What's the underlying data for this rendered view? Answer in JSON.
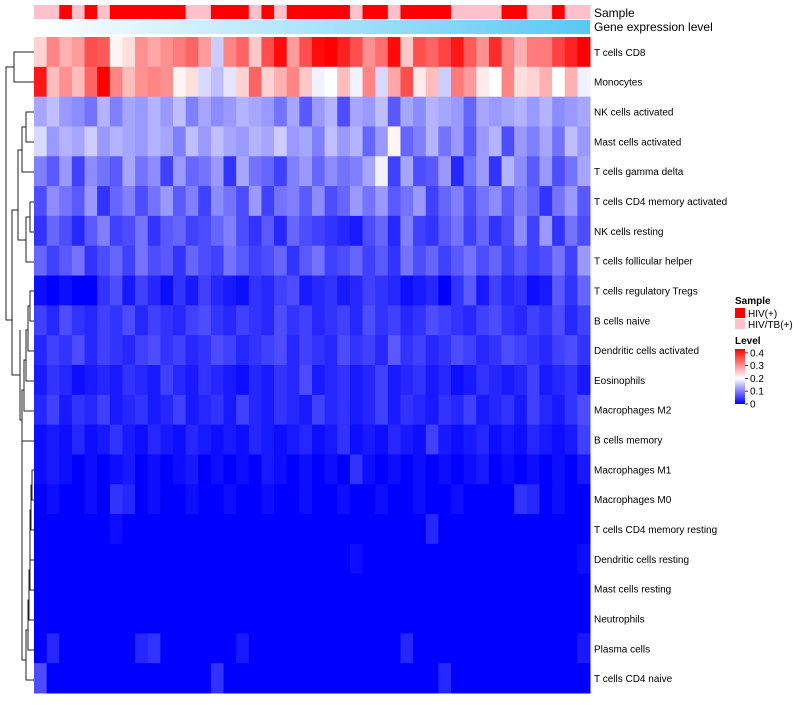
{
  "chart_data": {
    "type": "heatmap",
    "annotation_labels": {
      "sample": "Sample",
      "gene_expression": "Gene expression level"
    },
    "row_labels": [
      "T cells CD8",
      "Monocytes",
      "NK cells activated",
      "Mast cells activated",
      "T cells gamma delta",
      "T cells CD4 memory activated",
      "NK cells resting",
      "T cells follicular helper",
      "T cells regulatory  Tregs",
      "B cells naive",
      "Dendritic cells activated",
      "Eosinophils",
      "Macrophages M2",
      "B cells memory",
      "Macrophages M1",
      "Macrophages M0",
      "T cells CD4 memory resting",
      "Dendritic cells resting",
      "Mast cells resting",
      "Neutrophils",
      "Plasma cells",
      "T cells CD4 naive"
    ],
    "sample_groups": [
      0,
      0,
      1,
      0,
      1,
      0,
      1,
      1,
      1,
      1,
      1,
      1,
      0,
      0,
      1,
      1,
      1,
      0,
      1,
      0,
      1,
      1,
      1,
      1,
      1,
      0,
      1,
      1,
      0,
      1,
      1,
      1,
      1,
      0,
      0,
      0,
      0,
      1,
      1,
      0,
      0,
      1,
      0,
      0
    ],
    "gene_expression_gradient": [
      "#ffffff",
      "#5ac8f5"
    ],
    "values": [
      [
        0.24,
        0.31,
        0.27,
        0.29,
        0.36,
        0.35,
        0.21,
        0.23,
        0.3,
        0.28,
        0.3,
        0.32,
        0.34,
        0.29,
        0.16,
        0.31,
        0.34,
        0.25,
        0.36,
        0.42,
        0.29,
        0.36,
        0.42,
        0.43,
        0.4,
        0.36,
        0.3,
        0.33,
        0.42,
        0.25,
        0.36,
        0.34,
        0.37,
        0.41,
        0.35,
        0.3,
        0.39,
        0.31,
        0.27,
        0.32,
        0.32,
        0.37,
        0.4,
        0.43
      ],
      [
        0.41,
        0.26,
        0.3,
        0.26,
        0.34,
        0.43,
        0.31,
        0.26,
        0.3,
        0.31,
        0.3,
        0.21,
        0.23,
        0.17,
        0.15,
        0.18,
        0.24,
        0.34,
        0.24,
        0.27,
        0.31,
        0.25,
        0.19,
        0.2,
        0.26,
        0.19,
        0.31,
        0.17,
        0.28,
        0.36,
        0.22,
        0.26,
        0.16,
        0.32,
        0.29,
        0.22,
        0.2,
        0.31,
        0.23,
        0.24,
        0.27,
        0.2,
        0.27,
        0.19
      ],
      [
        0.13,
        0.15,
        0.12,
        0.11,
        0.09,
        0.14,
        0.1,
        0.13,
        0.12,
        0.14,
        0.12,
        0.15,
        0.1,
        0.13,
        0.11,
        0.12,
        0.14,
        0.13,
        0.12,
        0.09,
        0.13,
        0.07,
        0.12,
        0.14,
        0.06,
        0.13,
        0.12,
        0.15,
        0.07,
        0.13,
        0.11,
        0.14,
        0.13,
        0.12,
        0.08,
        0.13,
        0.12,
        0.13,
        0.14,
        0.12,
        0.14,
        0.11,
        0.12,
        0.13
      ],
      [
        0.17,
        0.12,
        0.14,
        0.13,
        0.16,
        0.12,
        0.14,
        0.13,
        0.12,
        0.14,
        0.13,
        0.1,
        0.15,
        0.12,
        0.15,
        0.13,
        0.12,
        0.14,
        0.13,
        0.16,
        0.12,
        0.13,
        0.1,
        0.15,
        0.12,
        0.14,
        0.08,
        0.12,
        0.21,
        0.08,
        0.1,
        0.14,
        0.09,
        0.12,
        0.07,
        0.12,
        0.14,
        0.06,
        0.12,
        0.1,
        0.13,
        0.09,
        0.15,
        0.12
      ],
      [
        0.1,
        0.07,
        0.12,
        0.05,
        0.11,
        0.09,
        0.07,
        0.13,
        0.09,
        0.11,
        0.05,
        0.12,
        0.08,
        0.09,
        0.12,
        0.04,
        0.13,
        0.09,
        0.08,
        0.05,
        0.1,
        0.12,
        0.08,
        0.11,
        0.09,
        0.1,
        0.13,
        0.19,
        0.05,
        0.13,
        0.06,
        0.07,
        0.12,
        0.03,
        0.09,
        0.12,
        0.04,
        0.14,
        0.11,
        0.07,
        0.12,
        0.06,
        0.09,
        0.13
      ],
      [
        0.06,
        0.11,
        0.09,
        0.07,
        0.12,
        0.04,
        0.08,
        0.1,
        0.06,
        0.09,
        0.12,
        0.07,
        0.1,
        0.05,
        0.11,
        0.09,
        0.06,
        0.12,
        0.05,
        0.09,
        0.1,
        0.07,
        0.11,
        0.06,
        0.08,
        0.12,
        0.09,
        0.12,
        0.07,
        0.09,
        0.12,
        0.05,
        0.08,
        0.1,
        0.06,
        0.09,
        0.11,
        0.07,
        0.1,
        0.08,
        0.04,
        0.09,
        0.12,
        0.07
      ],
      [
        0.04,
        0.08,
        0.06,
        0.03,
        0.07,
        0.1,
        0.05,
        0.06,
        0.09,
        0.04,
        0.07,
        0.08,
        0.05,
        0.06,
        0.08,
        0.1,
        0.06,
        0.04,
        0.07,
        0.03,
        0.08,
        0.06,
        0.05,
        0.04,
        0.03,
        0.02,
        0.06,
        0.08,
        0.03,
        0.1,
        0.05,
        0.04,
        0.07,
        0.09,
        0.05,
        0.08,
        0.04,
        0.06,
        0.11,
        0.05,
        0.12,
        0.04,
        0.09,
        0.06
      ],
      [
        0.08,
        0.05,
        0.07,
        0.09,
        0.04,
        0.06,
        0.08,
        0.05,
        0.09,
        0.06,
        0.07,
        0.04,
        0.08,
        0.06,
        0.05,
        0.09,
        0.07,
        0.05,
        0.06,
        0.08,
        0.04,
        0.07,
        0.09,
        0.05,
        0.06,
        0.08,
        0.05,
        0.07,
        0.04,
        0.09,
        0.06,
        0.08,
        0.05,
        0.07,
        0.09,
        0.06,
        0.08,
        0.05,
        0.07,
        0.05,
        0.06,
        0.09,
        0.05,
        0.12
      ],
      [
        0.01,
        0.0,
        0.01,
        0.0,
        0.0,
        0.04,
        0.06,
        0.02,
        0.05,
        0.03,
        0.01,
        0.04,
        0.02,
        0.05,
        0.03,
        0.02,
        0.01,
        0.04,
        0.03,
        0.05,
        0.06,
        0.02,
        0.03,
        0.04,
        0.02,
        0.03,
        0.05,
        0.04,
        0.03,
        0.01,
        0.02,
        0.03,
        0.0,
        0.04,
        0.07,
        0.02,
        0.05,
        0.03,
        0.04,
        0.01,
        0.02,
        0.07,
        0.04,
        0.08
      ],
      [
        0.05,
        0.03,
        0.06,
        0.04,
        0.03,
        0.05,
        0.04,
        0.06,
        0.03,
        0.05,
        0.04,
        0.03,
        0.05,
        0.06,
        0.04,
        0.03,
        0.05,
        0.04,
        0.03,
        0.06,
        0.04,
        0.05,
        0.03,
        0.04,
        0.05,
        0.03,
        0.06,
        0.04,
        0.05,
        0.03,
        0.04,
        0.06,
        0.05,
        0.04,
        0.03,
        0.05,
        0.06,
        0.04,
        0.03,
        0.05,
        0.04,
        0.06,
        0.03,
        0.05
      ],
      [
        0.03,
        0.05,
        0.04,
        0.06,
        0.03,
        0.05,
        0.04,
        0.03,
        0.05,
        0.06,
        0.04,
        0.05,
        0.03,
        0.04,
        0.06,
        0.05,
        0.03,
        0.04,
        0.05,
        0.06,
        0.03,
        0.05,
        0.04,
        0.03,
        0.06,
        0.04,
        0.05,
        0.03,
        0.07,
        0.04,
        0.05,
        0.03,
        0.04,
        0.06,
        0.05,
        0.03,
        0.04,
        0.06,
        0.05,
        0.04,
        0.03,
        0.05,
        0.06,
        0.04
      ],
      [
        0.02,
        0.04,
        0.03,
        0.01,
        0.02,
        0.03,
        0.02,
        0.04,
        0.03,
        0.02,
        0.05,
        0.03,
        0.02,
        0.04,
        0.03,
        0.02,
        0.01,
        0.03,
        0.02,
        0.04,
        0.03,
        0.06,
        0.02,
        0.03,
        0.04,
        0.02,
        0.03,
        0.05,
        0.02,
        0.03,
        0.04,
        0.02,
        0.03,
        0.01,
        0.02,
        0.04,
        0.03,
        0.02,
        0.03,
        0.05,
        0.02,
        0.03,
        0.04,
        0.02
      ],
      [
        0.03,
        0.05,
        0.02,
        0.04,
        0.03,
        0.05,
        0.02,
        0.03,
        0.04,
        0.02,
        0.03,
        0.05,
        0.02,
        0.03,
        0.04,
        0.02,
        0.05,
        0.03,
        0.02,
        0.04,
        0.03,
        0.02,
        0.05,
        0.03,
        0.04,
        0.02,
        0.03,
        0.05,
        0.02,
        0.04,
        0.03,
        0.02,
        0.04,
        0.03,
        0.05,
        0.02,
        0.03,
        0.04,
        0.02,
        0.05,
        0.03,
        0.02,
        0.04,
        0.06
      ],
      [
        0.01,
        0.02,
        0.01,
        0.03,
        0.01,
        0.02,
        0.04,
        0.02,
        0.01,
        0.03,
        0.02,
        0.01,
        0.03,
        0.02,
        0.01,
        0.02,
        0.01,
        0.03,
        0.02,
        0.01,
        0.02,
        0.03,
        0.01,
        0.02,
        0.04,
        0.01,
        0.02,
        0.01,
        0.03,
        0.02,
        0.01,
        0.05,
        0.02,
        0.01,
        0.02,
        0.03,
        0.01,
        0.02,
        0.01,
        0.03,
        0.02,
        0.01,
        0.02,
        0.05
      ],
      [
        0.01,
        0.02,
        0.01,
        0.0,
        0.01,
        0.0,
        0.01,
        0.02,
        0.0,
        0.01,
        0.0,
        0.01,
        0.02,
        0.0,
        0.01,
        0.0,
        0.01,
        0.0,
        0.02,
        0.01,
        0.0,
        0.01,
        0.0,
        0.01,
        0.0,
        0.04,
        0.01,
        0.0,
        0.01,
        0.0,
        0.01,
        0.0,
        0.01,
        0.0,
        0.01,
        0.02,
        0.0,
        0.01,
        0.0,
        0.01,
        0.0,
        0.01,
        0.0,
        0.02
      ],
      [
        0.0,
        0.01,
        0.0,
        0.0,
        0.01,
        0.0,
        0.04,
        0.03,
        0.0,
        0.01,
        0.0,
        0.0,
        0.01,
        0.0,
        0.0,
        0.01,
        0.0,
        0.0,
        0.01,
        0.0,
        0.0,
        0.01,
        0.0,
        0.0,
        0.01,
        0.0,
        0.0,
        0.01,
        0.0,
        0.0,
        0.01,
        0.0,
        0.0,
        0.01,
        0.0,
        0.0,
        0.0,
        0.0,
        0.04,
        0.03,
        0.0,
        0.01,
        0.0,
        0.0
      ],
      [
        0.0,
        0.0,
        0.0,
        0.0,
        0.0,
        0.0,
        0.01,
        0.0,
        0.0,
        0.0,
        0.0,
        0.0,
        0.0,
        0.0,
        0.0,
        0.0,
        0.0,
        0.0,
        0.0,
        0.0,
        0.0,
        0.0,
        0.0,
        0.0,
        0.0,
        0.0,
        0.0,
        0.0,
        0.0,
        0.0,
        0.0,
        0.03,
        0.0,
        0.0,
        0.0,
        0.0,
        0.0,
        0.0,
        0.0,
        0.0,
        0.0,
        0.0,
        0.0,
        0.0
      ],
      [
        0.0,
        0.0,
        0.0,
        0.0,
        0.0,
        0.0,
        0.0,
        0.0,
        0.0,
        0.0,
        0.0,
        0.0,
        0.0,
        0.0,
        0.0,
        0.0,
        0.0,
        0.0,
        0.0,
        0.0,
        0.0,
        0.0,
        0.0,
        0.0,
        0.0,
        0.01,
        0.0,
        0.0,
        0.0,
        0.0,
        0.0,
        0.0,
        0.0,
        0.0,
        0.0,
        0.0,
        0.0,
        0.0,
        0.0,
        0.0,
        0.0,
        0.0,
        0.0,
        0.01
      ],
      [
        0.0,
        0.0,
        0.0,
        0.0,
        0.0,
        0.0,
        0.0,
        0.0,
        0.0,
        0.0,
        0.0,
        0.0,
        0.0,
        0.0,
        0.0,
        0.0,
        0.0,
        0.0,
        0.0,
        0.0,
        0.0,
        0.0,
        0.0,
        0.0,
        0.0,
        0.0,
        0.0,
        0.0,
        0.0,
        0.0,
        0.0,
        0.0,
        0.0,
        0.0,
        0.0,
        0.0,
        0.0,
        0.0,
        0.0,
        0.0,
        0.0,
        0.0,
        0.0,
        0.0
      ],
      [
        0.0,
        0.0,
        0.0,
        0.0,
        0.0,
        0.0,
        0.0,
        0.0,
        0.0,
        0.0,
        0.0,
        0.0,
        0.0,
        0.0,
        0.0,
        0.0,
        0.0,
        0.0,
        0.0,
        0.0,
        0.0,
        0.0,
        0.0,
        0.0,
        0.0,
        0.0,
        0.0,
        0.0,
        0.0,
        0.0,
        0.0,
        0.0,
        0.0,
        0.0,
        0.0,
        0.0,
        0.0,
        0.0,
        0.0,
        0.0,
        0.0,
        0.0,
        0.0,
        0.0
      ],
      [
        0.0,
        0.03,
        0.0,
        0.0,
        0.0,
        0.0,
        0.0,
        0.0,
        0.03,
        0.04,
        0.0,
        0.0,
        0.0,
        0.0,
        0.0,
        0.0,
        0.02,
        0.0,
        0.0,
        0.0,
        0.0,
        0.0,
        0.0,
        0.0,
        0.0,
        0.0,
        0.0,
        0.0,
        0.0,
        0.03,
        0.0,
        0.0,
        0.0,
        0.0,
        0.0,
        0.0,
        0.0,
        0.0,
        0.0,
        0.0,
        0.0,
        0.0,
        0.0,
        0.02
      ],
      [
        0.06,
        0.0,
        0.0,
        0.0,
        0.0,
        0.0,
        0.0,
        0.0,
        0.0,
        0.0,
        0.0,
        0.0,
        0.0,
        0.0,
        0.04,
        0.0,
        0.0,
        0.0,
        0.0,
        0.0,
        0.0,
        0.0,
        0.0,
        0.0,
        0.0,
        0.0,
        0.0,
        0.0,
        0.0,
        0.0,
        0.0,
        0.0,
        0.03,
        0.0,
        0.0,
        0.0,
        0.0,
        0.0,
        0.0,
        0.0,
        0.0,
        0.0,
        0.0,
        0.0
      ]
    ],
    "color_scale": {
      "min": 0,
      "max": 0.43,
      "stops": [
        "#0000ff",
        "#ffffff",
        "#ff0000"
      ],
      "mid": 0.2
    },
    "legend_sample": {
      "title": "Sample",
      "entries": [
        {
          "label": "HIV(+)",
          "color": "#ff0000"
        },
        {
          "label": "HIV/TB(+)",
          "color": "#ffc0cb"
        }
      ]
    },
    "legend_level": {
      "title": "Level",
      "ticks": [
        {
          "value": 0.4,
          "label": "0.4"
        },
        {
          "value": 0.3,
          "label": "0.3"
        },
        {
          "value": 0.2,
          "label": "0.2"
        },
        {
          "value": 0.1,
          "label": "0.1"
        },
        {
          "value": 0,
          "label": "0"
        }
      ]
    }
  }
}
